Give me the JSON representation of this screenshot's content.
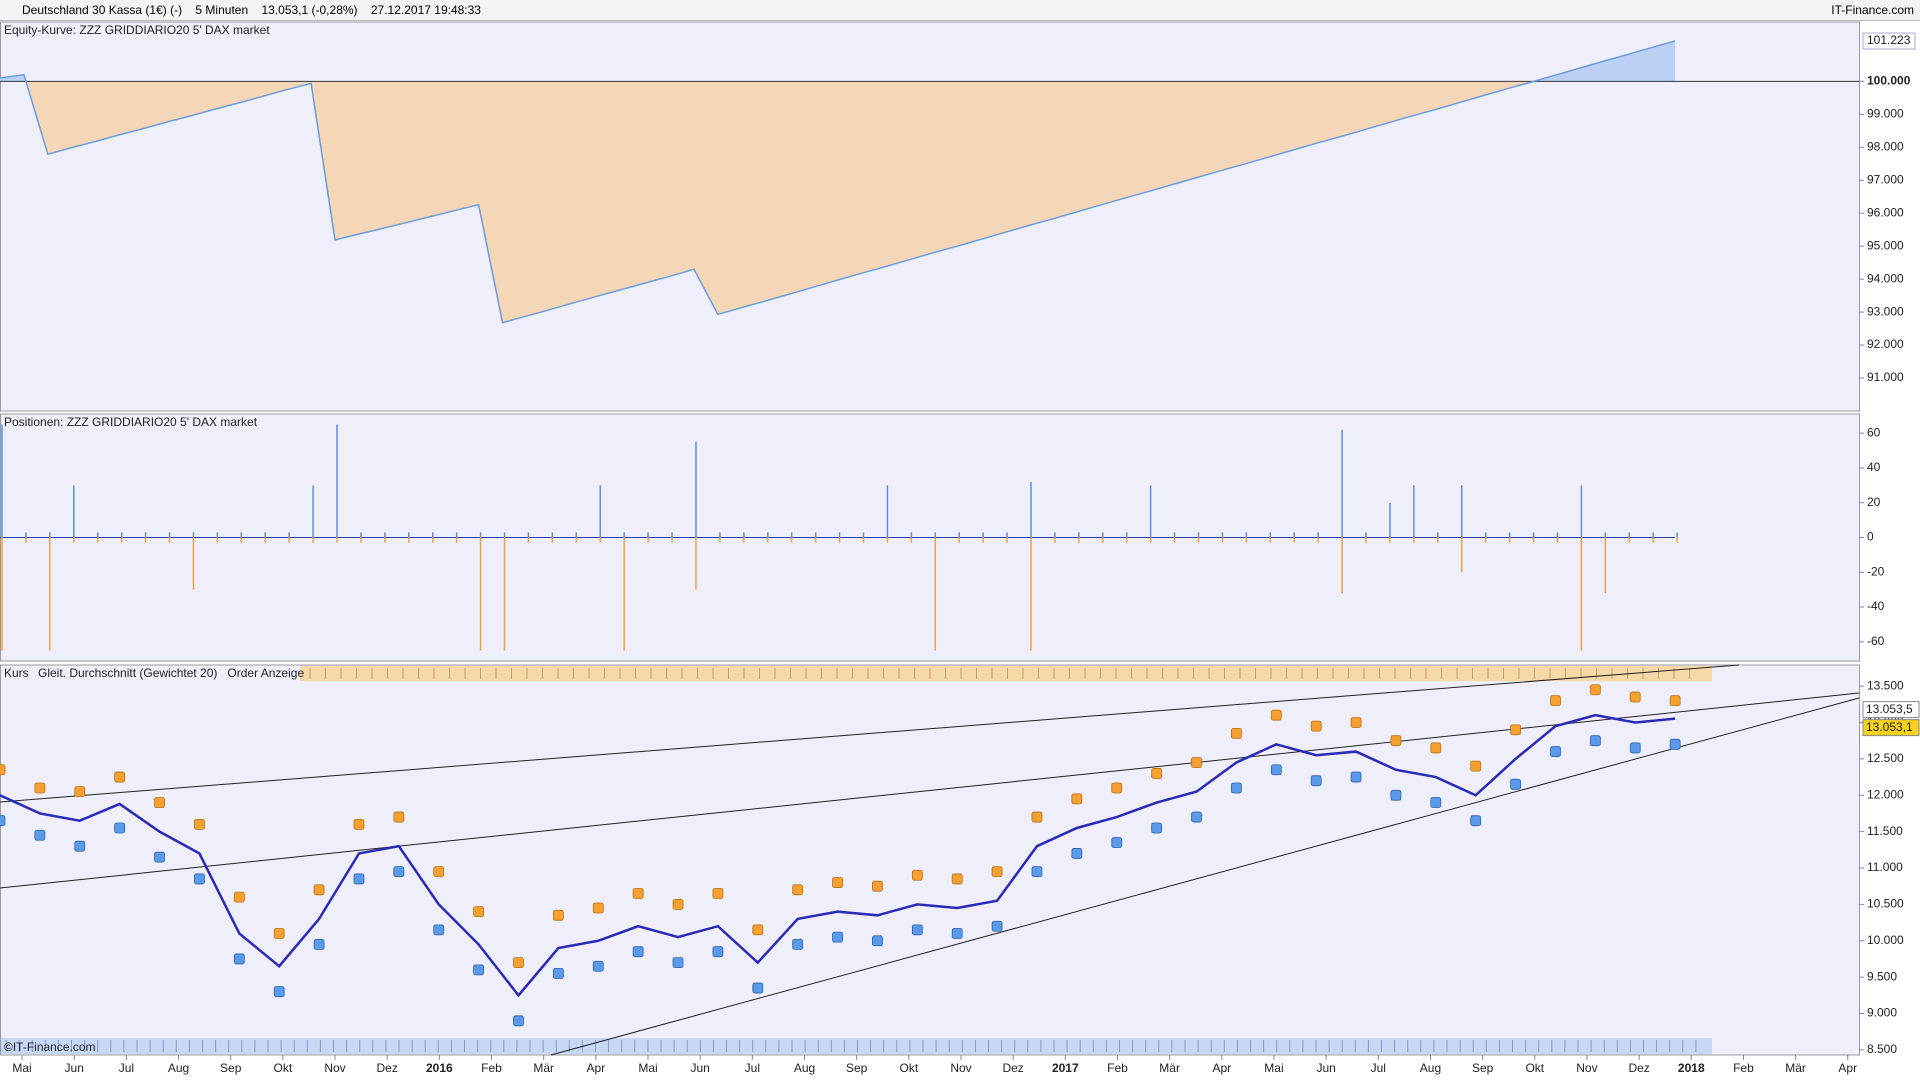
{
  "header": {
    "instrument": "Deutschland 30 Kassa (1€) (-)",
    "interval": "5 Minuten",
    "price": "13.053,1 (-0,28%)",
    "timestamp": "27.12.2017 19:48:33",
    "source": "IT-Finance.com"
  },
  "watermark": "©IT-Finance.com",
  "x_axis": {
    "categories": [
      "Mai",
      "Jun",
      "Jul",
      "Aug",
      "Sep",
      "Okt",
      "Nov",
      "Dez",
      "2016",
      "Feb",
      "Mär",
      "Apr",
      "Mai",
      "Jun",
      "Jul",
      "Aug",
      "Sep",
      "Okt",
      "Nov",
      "Dez",
      "2017",
      "Feb",
      "Mär",
      "Apr",
      "Mai",
      "Jun",
      "Jul",
      "Aug",
      "Sep",
      "Okt",
      "Nov",
      "Dez",
      "2018",
      "Feb",
      "Mär",
      "Apr"
    ]
  },
  "chart_data": [
    {
      "type": "area",
      "title": "Equity-Kurve: ZZZ GRIDDIARIO20 5' DAX market",
      "ylim": [
        90000,
        101800
      ],
      "yticks": [
        {
          "value": 91000,
          "label": "91.000"
        },
        {
          "value": 92000,
          "label": "92.000"
        },
        {
          "value": 93000,
          "label": "93.000"
        },
        {
          "value": 94000,
          "label": "94.000"
        },
        {
          "value": 95000,
          "label": "95.000"
        },
        {
          "value": 96000,
          "label": "96.000"
        },
        {
          "value": 97000,
          "label": "97.000"
        },
        {
          "value": 98000,
          "label": "98.000"
        },
        {
          "value": 99000,
          "label": "99.000"
        },
        {
          "value": 100000,
          "label": "100.000"
        }
      ],
      "reference": 100000,
      "last_value": {
        "value": 101223,
        "label": "101.223"
      },
      "series": [
        {
          "color": "#6a9de0",
          "values": [
            100100,
            100200,
            97790,
            97990,
            98180,
            98380,
            98570,
            98770,
            98960,
            99160,
            99350,
            99550,
            99750,
            99940,
            95190,
            95370,
            95540,
            95720,
            95900,
            96080,
            96260,
            92680,
            92880,
            93080,
            93290,
            93490,
            93690,
            93890,
            94090,
            94300,
            92930,
            93140,
            93340,
            93550,
            93760,
            93970,
            94180,
            94380,
            94590,
            94800,
            95000,
            95210,
            95420,
            95630,
            95830,
            96040,
            96250,
            96460,
            96660,
            96870,
            97080,
            97290,
            97490,
            97700,
            97910,
            98120,
            98320,
            98530,
            98740,
            98950,
            99150,
            99360,
            99570,
            99780,
            99980,
            100190,
            100400,
            100610,
            100810,
            101020,
            101223
          ]
        }
      ]
    },
    {
      "type": "bar",
      "title": "Positionen: ZZZ GRIDDIARIO20 5' DAX market",
      "ylim": [
        -71,
        71
      ],
      "yticks": [
        60,
        40,
        20,
        0,
        -20,
        -40,
        -60
      ],
      "series": [
        {
          "color": "#5b8fe0",
          "values": [
            65,
            3,
            3,
            30,
            3,
            3,
            3,
            3,
            3,
            3,
            3,
            3,
            3,
            30,
            65,
            3,
            3,
            3,
            3,
            3,
            3,
            3,
            3,
            3,
            3,
            30,
            3,
            3,
            3,
            55,
            3,
            3,
            3,
            3,
            3,
            3,
            3,
            30,
            3,
            3,
            3,
            3,
            3,
            32,
            3,
            3,
            3,
            3,
            30,
            3,
            3,
            3,
            3,
            3,
            3,
            3,
            62,
            3,
            20,
            30,
            3,
            30,
            3,
            3,
            3,
            3,
            30,
            3,
            3,
            3,
            3
          ]
        },
        {
          "color": "#f0a040",
          "values": [
            -65,
            -3,
            -65,
            -3,
            -3,
            -3,
            -3,
            -3,
            -30,
            -3,
            -3,
            -3,
            -3,
            -3,
            -3,
            -3,
            -3,
            -3,
            -3,
            -3,
            -65,
            -65,
            -3,
            -3,
            -3,
            -3,
            -65,
            -3,
            -3,
            -30,
            -3,
            -3,
            -3,
            -3,
            -3,
            -3,
            -3,
            -3,
            -3,
            -65,
            -3,
            -3,
            -3,
            -65,
            -3,
            -3,
            -3,
            -3,
            -3,
            -3,
            -3,
            -3,
            -3,
            -3,
            -3,
            -3,
            -32,
            -3,
            -3,
            -3,
            -3,
            -20,
            -3,
            -3,
            -3,
            -3,
            -65,
            -32,
            -3,
            -3,
            -3
          ]
        }
      ]
    },
    {
      "type": "line",
      "title": "Kurs",
      "ylim": [
        8430,
        13790
      ],
      "yticks": [
        {
          "value": 8500,
          "label": "8.500"
        },
        {
          "value": 9000,
          "label": "9.000"
        },
        {
          "value": 9500,
          "label": "9.500"
        },
        {
          "value": 10000,
          "label": "10.000"
        },
        {
          "value": 10500,
          "label": "10.500"
        },
        {
          "value": 11000,
          "label": "11.000"
        },
        {
          "value": 11500,
          "label": "11.500"
        },
        {
          "value": 12000,
          "label": "12.000"
        },
        {
          "value": 12500,
          "label": "12.500"
        },
        {
          "value": 13000,
          "label": "13.000"
        },
        {
          "value": 13500,
          "label": "13.500"
        }
      ],
      "last_values": [
        {
          "value": 13053.5,
          "label": "13.053,5"
        },
        {
          "value": 13053.1,
          "label": "13.053,1"
        }
      ],
      "series": [
        {
          "name": "Gleit. Durchschnitt (Gewichtet 20)",
          "color": "#2a2ab8",
          "values": [
            12000,
            11750,
            11650,
            11880,
            11500,
            11200,
            10100,
            9650,
            10300,
            11200,
            11300,
            10500,
            9950,
            9250,
            9900,
            10000,
            10200,
            10050,
            10200,
            9700,
            10300,
            10400,
            10350,
            10500,
            10450,
            10550,
            11300,
            11550,
            11700,
            11900,
            12050,
            12450,
            12700,
            12550,
            12600,
            12350,
            12250,
            12000,
            12500,
            12950,
            13100,
            13000,
            13053
          ]
        },
        {
          "name": "Order Anzeige",
          "color": "#f5a030",
          "values": [
            12350,
            12100,
            12050,
            12250,
            11900,
            11600,
            10600,
            10100,
            10700,
            11600,
            11700,
            10950,
            10400,
            9700,
            10350,
            10450,
            10650,
            10500,
            10650,
            10150,
            10700,
            10800,
            10750,
            10900,
            10850,
            10950,
            11700,
            11950,
            12100,
            12300,
            12450,
            12850,
            13100,
            12950,
            13000,
            12750,
            12650,
            12400,
            12900,
            13300,
            13450,
            13350,
            13300
          ]
        },
        {
          "color": "#5a9ae8",
          "values": [
            11650,
            11450,
            11300,
            11550,
            11150,
            10850,
            9750,
            9300,
            9950,
            10850,
            10950,
            10150,
            9600,
            8900,
            9550,
            9650,
            9850,
            9700,
            9850,
            9350,
            9950,
            10050,
            10000,
            10150,
            10100,
            10200,
            10950,
            11200,
            11350,
            11550,
            11700,
            12100,
            12350,
            12200,
            12250,
            12000,
            11900,
            11650,
            12150,
            12600,
            12750,
            12650,
            12700
          ]
        }
      ]
    }
  ]
}
